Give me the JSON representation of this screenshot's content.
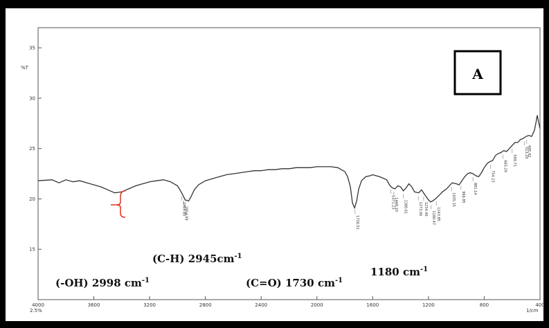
{
  "chart_data": {
    "type": "line",
    "ylabel": "%T",
    "xlabel_right": "1/cm",
    "x_tick_labels": [
      "4000",
      "3600",
      "3200",
      "2800",
      "2400",
      "2000",
      "1600",
      "1200",
      "800",
      "400"
    ],
    "x_corner_label": "2.5%",
    "xlim": [
      4000,
      400
    ],
    "y_tick_labels": [
      "35",
      "30",
      "25",
      "20",
      "15"
    ],
    "ylim": [
      10,
      37
    ],
    "panel_label": "A",
    "series": [
      {
        "x": [
          4000,
          3900,
          3850,
          3800,
          3750,
          3700,
          3650,
          3600,
          3550,
          3500,
          3450,
          3400,
          3350,
          3300,
          3250,
          3200,
          3150,
          3100,
          3050,
          3000,
          2970,
          2945,
          2920,
          2900,
          2880,
          2850,
          2800,
          2750,
          2700,
          2650,
          2600,
          2550,
          2500,
          2450,
          2400,
          2350,
          2300,
          2250,
          2200,
          2150,
          2100,
          2050,
          2000,
          1950,
          1900,
          1850,
          1800,
          1780,
          1760,
          1745,
          1730,
          1715,
          1700,
          1680,
          1650,
          1620,
          1600,
          1550,
          1500,
          1480,
          1460,
          1440,
          1420,
          1400,
          1380,
          1360,
          1340,
          1320,
          1300,
          1270,
          1250,
          1230,
          1200,
          1185,
          1170,
          1150,
          1120,
          1100,
          1070,
          1050,
          1030,
          1000,
          980,
          960,
          940,
          920,
          900,
          880,
          860,
          840,
          820,
          800,
          780,
          760,
          740,
          720,
          700,
          680,
          660,
          640,
          620,
          600,
          580,
          560,
          540,
          520,
          500,
          480,
          460,
          440,
          430,
          420,
          410,
          400
        ],
        "y": [
          21.8,
          21.9,
          21.6,
          21.9,
          21.7,
          21.8,
          21.6,
          21.4,
          21.2,
          20.9,
          20.6,
          20.7,
          21.0,
          21.3,
          21.5,
          21.7,
          21.8,
          21.9,
          21.7,
          21.3,
          20.6,
          19.9,
          19.8,
          20.3,
          20.9,
          21.4,
          21.8,
          22.0,
          22.2,
          22.4,
          22.5,
          22.6,
          22.7,
          22.8,
          22.8,
          22.9,
          22.9,
          23.0,
          23.0,
          23.1,
          23.1,
          23.1,
          23.2,
          23.2,
          23.2,
          23.1,
          22.7,
          22.2,
          21.2,
          19.6,
          19.1,
          19.8,
          21.0,
          21.8,
          22.2,
          22.3,
          22.4,
          22.2,
          21.9,
          21.4,
          21.1,
          21.0,
          21.3,
          21.2,
          20.8,
          21.1,
          21.5,
          21.2,
          20.7,
          20.6,
          20.9,
          20.5,
          19.9,
          19.7,
          19.8,
          20.0,
          20.4,
          20.7,
          21.0,
          21.3,
          21.6,
          21.5,
          21.4,
          21.8,
          22.2,
          22.5,
          22.6,
          22.5,
          22.3,
          22.2,
          22.6,
          23.1,
          23.5,
          23.7,
          23.8,
          24.3,
          24.5,
          24.6,
          24.8,
          24.7,
          25.0,
          25.3,
          25.6,
          25.6,
          25.9,
          26.0,
          26.2,
          26.3,
          26.2,
          26.8,
          27.5,
          28.3,
          27.6,
          27.0
        ]
      }
    ],
    "peak_labels": [
      "2969.85",
      "2954.99",
      "1726.51",
      "1471.23",
      "1448.20",
      "1380.61",
      "1273.06",
      "1234.40",
      "1180.47",
      "1143.85",
      "1035.15",
      "966.85",
      "881.14",
      "754.23",
      "665.29",
      "599.71",
      "513.20",
      "495.42"
    ],
    "annotations": [
      {
        "text": "(-OH) 2998 cm",
        "sup": "-1"
      },
      {
        "text": "(C-H) 2945cm",
        "sup": "-1"
      },
      {
        "text": "(C=O) 1730 cm",
        "sup": "-1"
      },
      {
        "text": "1180 cm",
        "sup": "-1"
      }
    ],
    "colors": {
      "line": "#333333",
      "bracket": "#e03020",
      "frame": "#000000"
    }
  }
}
